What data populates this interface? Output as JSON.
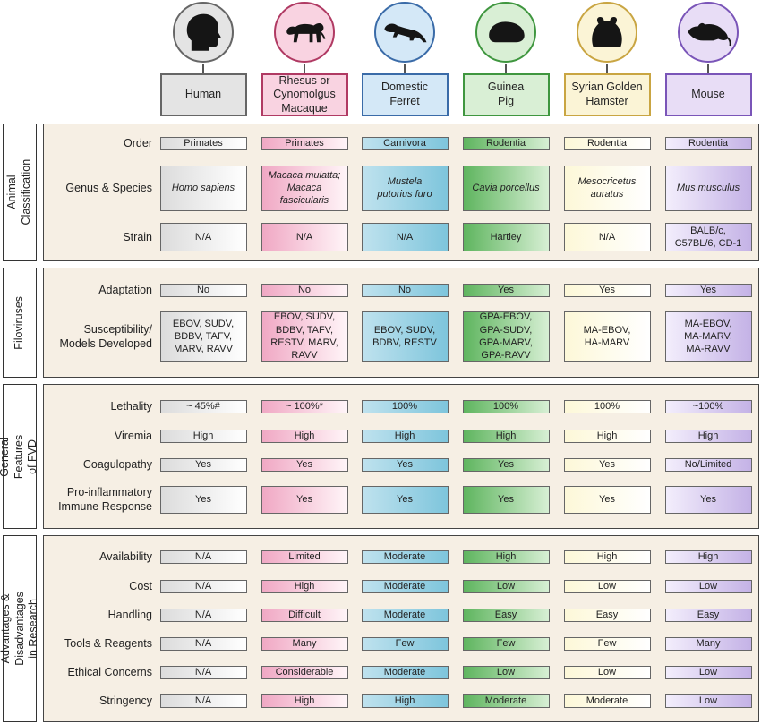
{
  "species": [
    {
      "name": "Human",
      "color": "#666666",
      "header_bg": "#e4e4e4",
      "icon": "human-head-icon"
    },
    {
      "name": "Rhesus or\nCynomolgus\nMacaque",
      "color": "#b03a63",
      "header_bg": "#f9d3e1",
      "icon": "macaque-icon"
    },
    {
      "name": "Domestic\nFerret",
      "color": "#3a6ba8",
      "header_bg": "#d4e8f7",
      "icon": "ferret-icon"
    },
    {
      "name": "Guinea\nPig",
      "color": "#3f963f",
      "header_bg": "#d9efd5",
      "icon": "guinea-pig-icon"
    },
    {
      "name": "Syrian Golden\nHamster",
      "color": "#c9a542",
      "header_bg": "#fbf4d6",
      "icon": "hamster-icon"
    },
    {
      "name": "Mouse",
      "color": "#7a55b8",
      "header_bg": "#e8ddf6",
      "icon": "mouse-icon"
    }
  ],
  "sections": [
    {
      "label": "Animal Classification",
      "rows": [
        {
          "label": "Order",
          "values": [
            "Primates",
            "Primates",
            "Carnivora",
            "Rodentia",
            "Rodentia",
            "Rodentia"
          ]
        },
        {
          "label": "Genus & Species",
          "italic": true,
          "values": [
            "Homo sapiens",
            "Macaca mulatta;\nMacaca\nfascicularis",
            "Mustela\nputorius furo",
            "Cavia porcellus",
            "Mesocricetus\nauratus",
            "Mus musculus"
          ]
        },
        {
          "label": "Strain",
          "values": [
            "N/A",
            "N/A",
            "N/A",
            "Hartley",
            "N/A",
            "BALB/c,\nC57BL/6, CD-1"
          ]
        }
      ]
    },
    {
      "label": "Filoviruses",
      "rows": [
        {
          "label": "Adaptation",
          "values": [
            "No",
            "No",
            "No",
            "Yes",
            "Yes",
            "Yes"
          ]
        },
        {
          "label": "Susceptibility/\nModels Developed",
          "values": [
            "EBOV, SUDV,\nBDBV, TAFV,\nMARV, RAVV",
            "EBOV, SUDV,\nBDBV, TAFV,\nRESTV, MARV,\nRAVV",
            "EBOV, SUDV,\nBDBV, RESTV",
            "GPA-EBOV,\nGPA-SUDV,\nGPA-MARV,\nGPA-RAVV",
            "MA-EBOV,\nHA-MARV",
            "MA-EBOV,\nMA-MARV,\nMA-RAVV"
          ]
        }
      ]
    },
    {
      "label": "General\nFeatures of FVD",
      "rows": [
        {
          "label": "Lethality",
          "values": [
            "~ 45%#",
            "~ 100%*",
            "100%",
            "100%",
            "100%",
            "~100%"
          ]
        },
        {
          "label": "Viremia",
          "values": [
            "High",
            "High",
            "High",
            "High",
            "High",
            "High"
          ]
        },
        {
          "label": "Coagulopathy",
          "values": [
            "Yes",
            "Yes",
            "Yes",
            "Yes",
            "Yes",
            "No/Limited"
          ]
        },
        {
          "label": "Pro-inflammatory\nImmune Response",
          "values": [
            "Yes",
            "Yes",
            "Yes",
            "Yes",
            "Yes",
            "Yes"
          ]
        }
      ]
    },
    {
      "label": "Advantages & Disadvantages\nin Research",
      "rows": [
        {
          "label": "Availability",
          "values": [
            "N/A",
            "Limited",
            "Moderate",
            "High",
            "High",
            "High"
          ]
        },
        {
          "label": "Cost",
          "values": [
            "N/A",
            "High",
            "Moderate",
            "Low",
            "Low",
            "Low"
          ]
        },
        {
          "label": "Handling",
          "values": [
            "N/A",
            "Difficult",
            "Moderate",
            "Easy",
            "Easy",
            "Easy"
          ]
        },
        {
          "label": "Tools & Reagents",
          "values": [
            "N/A",
            "Many",
            "Few",
            "Few",
            "Few",
            "Many"
          ]
        },
        {
          "label": "Ethical Concerns",
          "values": [
            "N/A",
            "Considerable",
            "Moderate",
            "Low",
            "Low",
            "Low"
          ]
        },
        {
          "label": "Stringency",
          "values": [
            "N/A",
            "High",
            "High",
            "Moderate",
            "Moderate",
            "Low"
          ]
        }
      ]
    }
  ]
}
